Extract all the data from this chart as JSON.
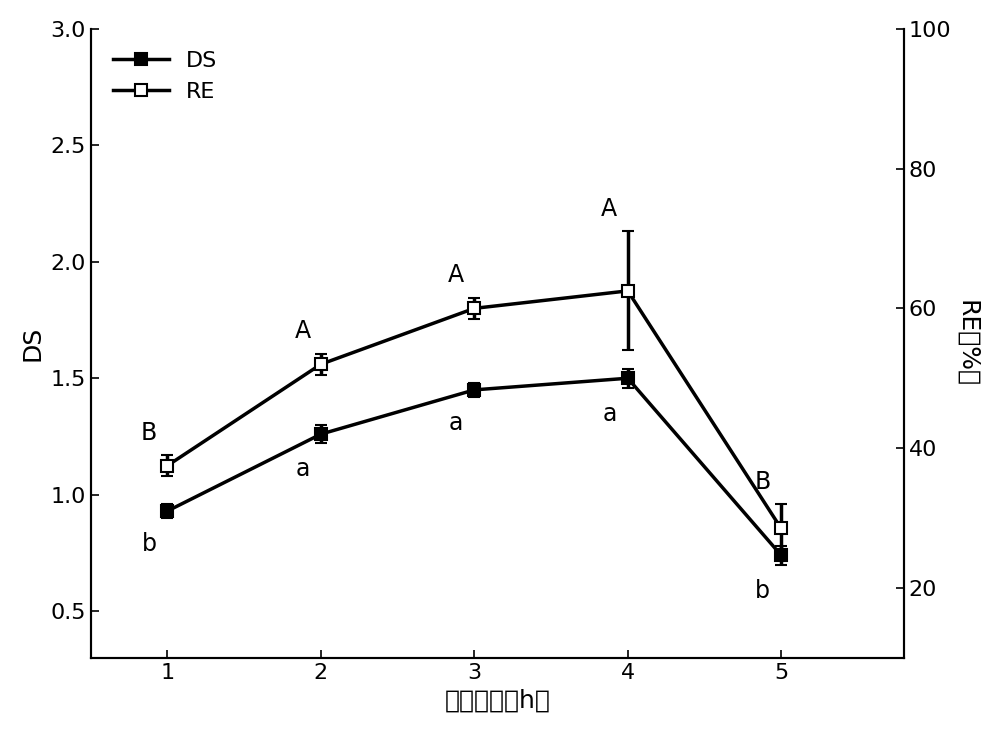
{
  "x": [
    1,
    2,
    3,
    4,
    5
  ],
  "DS_values": [
    0.93,
    1.26,
    1.45,
    1.5,
    0.74
  ],
  "DS_errors": [
    0.03,
    0.04,
    0.03,
    0.04,
    0.04
  ],
  "RE_values": [
    37.5,
    52.0,
    60.0,
    62.5,
    28.5
  ],
  "RE_errors": [
    1.5,
    1.5,
    1.5,
    8.5,
    3.5
  ],
  "DS_labels": [
    "b",
    "a",
    "a",
    "a",
    "b"
  ],
  "RE_labels": [
    "B",
    "A",
    "A",
    "A",
    "B"
  ],
  "xlabel": "反应时间（h）",
  "ylabel_left": "DS",
  "ylabel_right": "RE（%）",
  "ylim_left": [
    0.3,
    3.0
  ],
  "ylim_right": [
    10,
    100
  ],
  "yticks_left": [
    0.5,
    1.0,
    1.5,
    2.0,
    2.5,
    3.0
  ],
  "yticks_right": [
    20,
    40,
    60,
    80,
    100
  ],
  "xticks": [
    1,
    2,
    3,
    4,
    5
  ],
  "legend_DS": "DS",
  "legend_RE": "RE",
  "line_color": "#000000",
  "background_color": "#ffffff",
  "line_width": 2.5,
  "marker_size": 9,
  "font_size_tick": 16,
  "font_size_label": 18,
  "font_size_legend": 16,
  "font_size_annot": 17,
  "xlim": [
    0.5,
    5.8
  ]
}
